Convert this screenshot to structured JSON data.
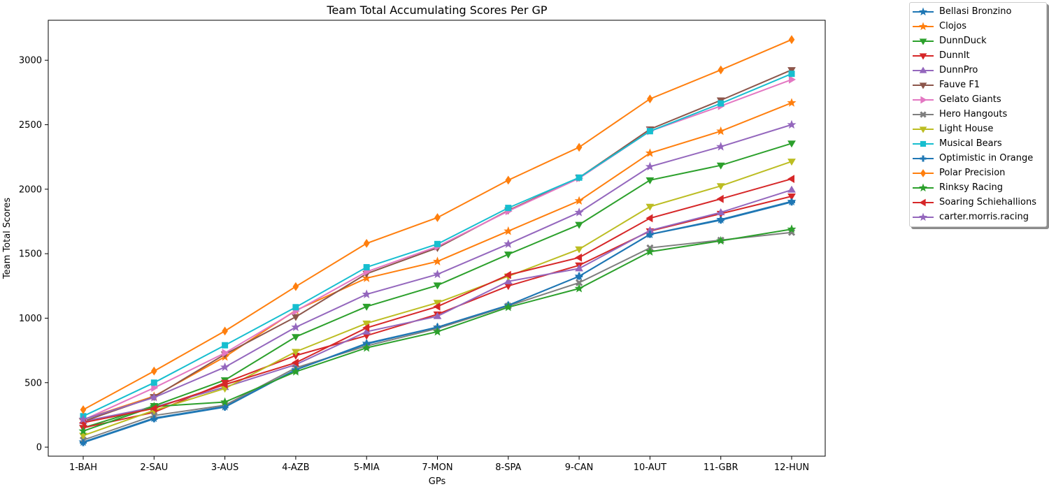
{
  "chart_data": {
    "type": "line",
    "title": "Team Total Accumulating Scores Per GP",
    "xlabel": "GPs",
    "ylabel": "Team Total Scores",
    "categories": [
      "1-BAH",
      "2-SAU",
      "3-AUS",
      "4-AZB",
      "5-MIA",
      "7-MON",
      "8-SPA",
      "9-CAN",
      "10-AUT",
      "11-GBR",
      "12-HUN"
    ],
    "ylim": [
      -70,
      3310
    ],
    "yticks": [
      0,
      500,
      1000,
      1500,
      2000,
      2500,
      3000
    ],
    "grid": false,
    "legend_position": "outside top-right",
    "series": [
      {
        "name": "Bellasi Bronzino",
        "color": "#1f77b4",
        "marker": "star",
        "values": [
          40,
          225,
          315,
          600,
          805,
          930,
          1100,
          1325,
          1650,
          1765,
          1905
        ]
      },
      {
        "name": "Clojos",
        "color": "#ff7f0e",
        "marker": "star",
        "values": [
          215,
          395,
          700,
          1060,
          1310,
          1440,
          1675,
          1910,
          2280,
          2450,
          2670
        ]
      },
      {
        "name": "DunnDuck",
        "color": "#2ca02c",
        "marker": "triangle-down",
        "values": [
          150,
          320,
          520,
          855,
          1090,
          1255,
          1495,
          1725,
          2070,
          2185,
          2355
        ]
      },
      {
        "name": "DunnIt",
        "color": "#d62728",
        "marker": "triangle-down",
        "values": [
          150,
          270,
          500,
          710,
          865,
          1030,
          1250,
          1410,
          1675,
          1810,
          1945
        ]
      },
      {
        "name": "DunnPro",
        "color": "#9467bd",
        "marker": "triangle-up",
        "values": [
          200,
          310,
          465,
          640,
          895,
          1015,
          1285,
          1385,
          1680,
          1820,
          1995
        ]
      },
      {
        "name": "Fauve F1",
        "color": "#8c564b",
        "marker": "triangle-down",
        "values": [
          200,
          390,
          720,
          1010,
          1345,
          1545,
          1835,
          2090,
          2465,
          2690,
          2925
        ]
      },
      {
        "name": "Gelato Giants",
        "color": "#e377c2",
        "marker": "triangle-right",
        "values": [
          210,
          460,
          730,
          1055,
          1360,
          1555,
          1830,
          2085,
          2450,
          2645,
          2850
        ]
      },
      {
        "name": "Hero Hangouts",
        "color": "#7f7f7f",
        "marker": "x",
        "values": [
          55,
          245,
          325,
          615,
          785,
          920,
          1095,
          1275,
          1545,
          1605,
          1665
        ]
      },
      {
        "name": "Light House",
        "color": "#bcbd22",
        "marker": "triangle-down",
        "values": [
          90,
          285,
          455,
          740,
          960,
          1120,
          1325,
          1535,
          1865,
          2025,
          2215
        ]
      },
      {
        "name": "Musical Bears",
        "color": "#17becf",
        "marker": "square",
        "values": [
          240,
          500,
          790,
          1085,
          1395,
          1575,
          1855,
          2090,
          2450,
          2665,
          2895
        ]
      },
      {
        "name": "Optimistic in Orange",
        "color": "#1f77b4",
        "marker": "plus",
        "values": [
          35,
          220,
          310,
          600,
          800,
          930,
          1100,
          1325,
          1650,
          1760,
          1900
        ]
      },
      {
        "name": "Polar Precision",
        "color": "#ff7f0e",
        "marker": "diamond",
        "values": [
          290,
          590,
          900,
          1245,
          1580,
          1780,
          2070,
          2325,
          2700,
          2925,
          3160
        ]
      },
      {
        "name": "Rinksy Racing",
        "color": "#2ca02c",
        "marker": "star",
        "values": [
          125,
          315,
          350,
          585,
          770,
          895,
          1085,
          1230,
          1515,
          1600,
          1690
        ]
      },
      {
        "name": "Soaring Schiehallions",
        "color": "#d62728",
        "marker": "triangle-left",
        "values": [
          190,
          300,
          485,
          655,
          925,
          1090,
          1335,
          1470,
          1775,
          1925,
          2080
        ]
      },
      {
        "name": "carter.morris.racing",
        "color": "#9467bd",
        "marker": "star",
        "values": [
          215,
          385,
          620,
          930,
          1185,
          1340,
          1575,
          1820,
          2175,
          2330,
          2500
        ]
      }
    ]
  }
}
